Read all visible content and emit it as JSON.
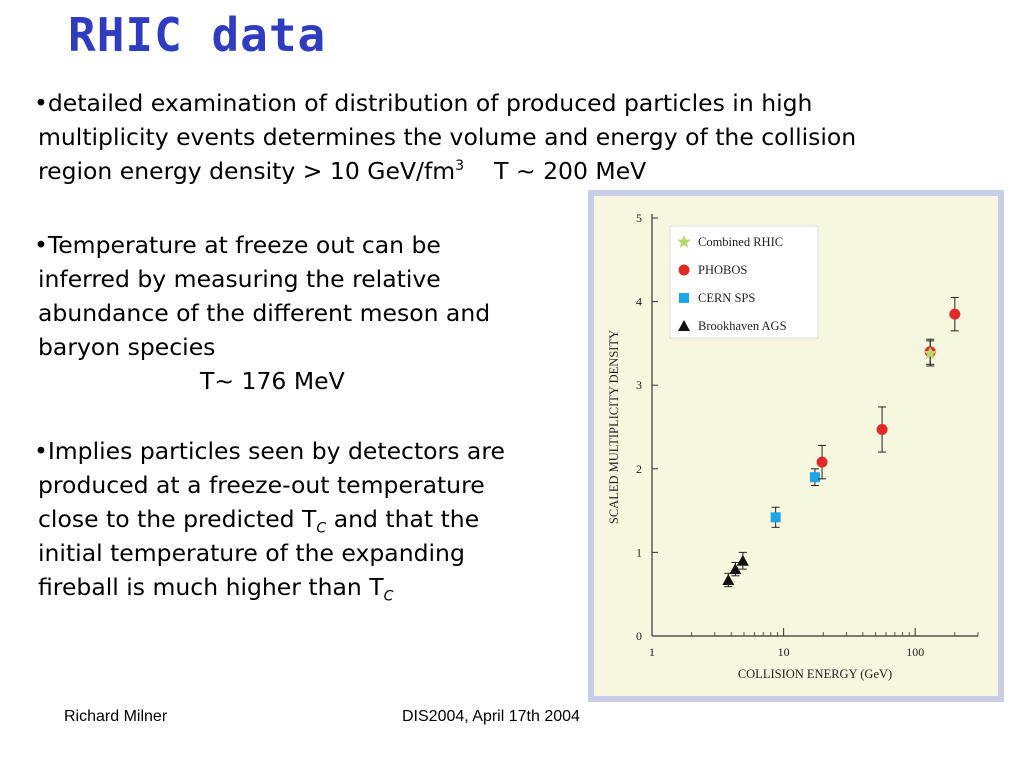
{
  "slide": {
    "title": "RHIC data",
    "bullet1": {
      "line1": "•detailed examination of distribution of produced particles in high",
      "line2": "multiplicity events determines the volume and energy of the collision",
      "line3a": "region energy density > 10 GeV/fm",
      "line3_sup": "3",
      "line3b": "T ~ 200 MeV"
    },
    "bullet2": {
      "line1": "•Temperature at freeze out can be",
      "line2": "inferred by measuring the relative",
      "line3": "abundance of the different meson and",
      "line4": "baryon species",
      "line5": "T~ 176 MeV"
    },
    "bullet3": {
      "line1": "•Implies particles seen by detectors are",
      "line2": "produced at a freeze-out temperature",
      "line3a": "close to the predicted T",
      "line3_sub": "C",
      "line3b": " and that the",
      "line4": "initial temperature of the expanding",
      "line5a": "fireball is much higher than T",
      "line5_sub": "C"
    },
    "footer_left": "Richard Milner",
    "footer_right": "DIS2004, April 17th 2004"
  },
  "colors": {
    "title": "#2f3cc0",
    "chart_bg": "#f7f6df",
    "chart_frame": "#c9cee8",
    "phobos": "#e02a2a",
    "cern": "#1ea6e6",
    "rhic": "#b9d86a",
    "ags": "#111111"
  },
  "chart_data": {
    "type": "scatter",
    "xlabel": "COLLISION ENERGY (GeV)",
    "ylabel": "SCALED MULTIPLICITY DENSITY",
    "xscale": "log",
    "xlim": [
      1,
      300
    ],
    "ylim": [
      0,
      5
    ],
    "xticks": [
      "1",
      "10",
      "100"
    ],
    "yticks": [
      "0",
      "1",
      "2",
      "3",
      "4",
      "5"
    ],
    "legend_position": "top-left",
    "series": [
      {
        "name": "Combined RHIC",
        "marker": "star",
        "points": [
          {
            "x": 130,
            "y": 3.38,
            "err": 0.15
          }
        ]
      },
      {
        "name": "PHOBOS",
        "marker": "circle",
        "points": [
          {
            "x": 19.6,
            "y": 2.08,
            "err": 0.2
          },
          {
            "x": 56,
            "y": 2.47,
            "err": 0.27
          },
          {
            "x": 130,
            "y": 3.4,
            "err": 0.15
          },
          {
            "x": 200,
            "y": 3.85,
            "err": 0.2
          }
        ]
      },
      {
        "name": "CERN SPS",
        "marker": "square",
        "points": [
          {
            "x": 8.7,
            "y": 1.42,
            "err": 0.12
          },
          {
            "x": 17.3,
            "y": 1.9,
            "err": 0.1
          }
        ]
      },
      {
        "name": "Brookhaven AGS",
        "marker": "triangle",
        "points": [
          {
            "x": 3.8,
            "y": 0.67,
            "err": 0.08
          },
          {
            "x": 4.3,
            "y": 0.8,
            "err": 0.08
          },
          {
            "x": 4.9,
            "y": 0.9,
            "err": 0.1
          }
        ]
      }
    ]
  }
}
